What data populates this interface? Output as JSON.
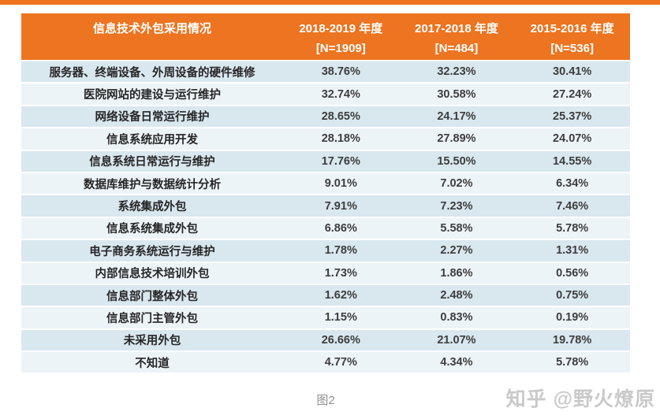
{
  "colors": {
    "header_bg": "#ed7420",
    "top_bar": "#ed7420",
    "row_alt_dark": "#d9e7ef",
    "row_alt_light": "#edf4f8",
    "header_text": "#ffffff",
    "label_text": "#262626",
    "value_text": "#3d3d3d",
    "caption_text": "#8f8f8f",
    "watermark_text": "#c9c9c9"
  },
  "chart_data": {
    "type": "table",
    "title": "信息技术外包采用情况",
    "columns": [
      {
        "label": "信息技术外包采用情况",
        "sub": ""
      },
      {
        "label": "2018-2019 年度",
        "sub": "[N=1909]"
      },
      {
        "label": "2017-2018 年度",
        "sub": "[N=484]"
      },
      {
        "label": "2015-2016 年度",
        "sub": "[N=536]"
      }
    ],
    "rows": [
      {
        "label": "服务器、终端设备、外周设备的硬件维修",
        "values": [
          "38.76%",
          "32.23%",
          "30.41%"
        ]
      },
      {
        "label": "医院网站的建设与运行维护",
        "values": [
          "32.74%",
          "30.58%",
          "27.24%"
        ]
      },
      {
        "label": "网络设备日常运行维护",
        "values": [
          "28.65%",
          "24.17%",
          "25.37%"
        ]
      },
      {
        "label": "信息系统应用开发",
        "values": [
          "28.18%",
          "27.89%",
          "24.07%"
        ]
      },
      {
        "label": "信息系统日常运行与维护",
        "values": [
          "17.76%",
          "15.50%",
          "14.55%"
        ]
      },
      {
        "label": "数据库维护与数据统计分析",
        "values": [
          "9.01%",
          "7.02%",
          "6.34%"
        ]
      },
      {
        "label": "系统集成外包",
        "values": [
          "7.91%",
          "7.23%",
          "7.46%"
        ]
      },
      {
        "label": "信息系统集成外包",
        "values": [
          "6.86%",
          "5.58%",
          "5.78%"
        ]
      },
      {
        "label": "电子商务系统运行与维护",
        "values": [
          "1.78%",
          "2.27%",
          "1.31%"
        ]
      },
      {
        "label": "内部信息技术培训外包",
        "values": [
          "1.73%",
          "1.86%",
          "0.56%"
        ]
      },
      {
        "label": "信息部门整体外包",
        "values": [
          "1.62%",
          "2.48%",
          "0.75%"
        ]
      },
      {
        "label": "信息部门主管外包",
        "values": [
          "1.15%",
          "0.83%",
          "0.19%"
        ]
      },
      {
        "label": "未采用外包",
        "values": [
          "26.66%",
          "21.07%",
          "19.78%"
        ]
      },
      {
        "label": "不知道",
        "values": [
          "4.77%",
          "4.34%",
          "5.78%"
        ]
      }
    ],
    "caption": "图2"
  },
  "watermark": "知乎 @野火燎原"
}
